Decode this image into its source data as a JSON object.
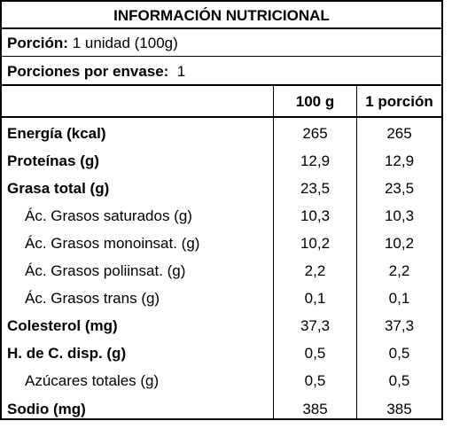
{
  "title": "INFORMACIÓN NUTRICIONAL",
  "serving": {
    "label": "Porción:",
    "value": "1 unidad (100g)"
  },
  "servings_per_container": {
    "label": "Porciones por envase:",
    "value": "1"
  },
  "columns": {
    "col1": "100 g",
    "col2": "1 porción"
  },
  "rows": [
    {
      "name": "Energía (kcal)",
      "v1": "265",
      "v2": "265",
      "bold": true
    },
    {
      "name": "Proteínas (g)",
      "v1": "12,9",
      "v2": "12,9",
      "bold": true
    },
    {
      "name": "Grasa total (g)",
      "v1": "23,5",
      "v2": "23,5",
      "bold": true
    },
    {
      "name": "Ác. Grasos saturados (g)",
      "v1": "10,3",
      "v2": "10,3",
      "bold": false
    },
    {
      "name": "Ác. Grasos monoinsat. (g)",
      "v1": "10,2",
      "v2": "10,2",
      "bold": false
    },
    {
      "name": "Ác. Grasos poliinsat. (g)",
      "v1": "2,2",
      "v2": "2,2",
      "bold": false
    },
    {
      "name": "Ác. Grasos trans (g)",
      "v1": "0,1",
      "v2": "0,1",
      "bold": false
    },
    {
      "name": "Colesterol (mg)",
      "v1": "37,3",
      "v2": "37,3",
      "bold": true
    },
    {
      "name": "H. de C. disp. (g)",
      "v1": "0,5",
      "v2": "0,5",
      "bold": true
    },
    {
      "name": "Azúcares totales (g)",
      "v1": "0,5",
      "v2": "0,5",
      "bold": false
    },
    {
      "name": "Sodio (mg)",
      "v1": "385",
      "v2": "385",
      "bold": true
    }
  ]
}
